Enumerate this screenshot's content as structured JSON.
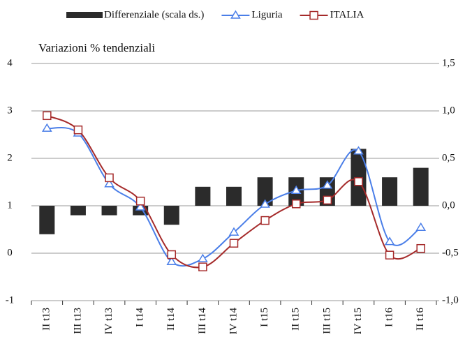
{
  "chart_data": {
    "type": "combo",
    "subtitle": "Variazioni % tendenziali",
    "categories": [
      "II t13",
      "III t13",
      "IV t13",
      "I t14",
      "II t14",
      "III t14",
      "IV t14",
      "I t15",
      "II t15",
      "III t15",
      "IV t15",
      "I t16",
      "II t16"
    ],
    "series": [
      {
        "name": "Differenziale (scala ds.)",
        "type": "bar",
        "axis": "y2",
        "color": "#2b2b2b",
        "values": [
          -0.3,
          -0.1,
          -0.1,
          -0.1,
          -0.2,
          0.2,
          0.2,
          0.3,
          0.3,
          0.3,
          0.6,
          0.3,
          0.4
        ]
      },
      {
        "name": "Liguria",
        "type": "line",
        "marker": "triangle",
        "color": "#4a7ee8",
        "values": [
          2.63,
          2.53,
          1.46,
          0.97,
          -0.18,
          -0.12,
          0.44,
          1.03,
          1.32,
          1.43,
          2.15,
          0.24,
          0.54
        ]
      },
      {
        "name": "ITALIA",
        "type": "line",
        "marker": "square",
        "color": "#a52a2a",
        "values": [
          2.9,
          2.6,
          1.59,
          1.1,
          -0.03,
          -0.29,
          0.21,
          0.69,
          1.04,
          1.12,
          1.51,
          -0.04,
          0.1
        ]
      }
    ],
    "ylim": [
      -1,
      4
    ],
    "yticks": [
      -1,
      0,
      1,
      2,
      3,
      4
    ],
    "y2lim": [
      -1,
      1.5
    ],
    "y2ticks": [
      {
        "value": -1,
        "label": "-1,0"
      },
      {
        "value": -0.5,
        "label": "-0,5"
      },
      {
        "value": 0,
        "label": "0,0"
      },
      {
        "value": 0.5,
        "label": "0,5"
      },
      {
        "value": 1,
        "label": "1,0"
      },
      {
        "value": 1.5,
        "label": "1,5"
      }
    ],
    "grid": true,
    "legend": "top"
  }
}
